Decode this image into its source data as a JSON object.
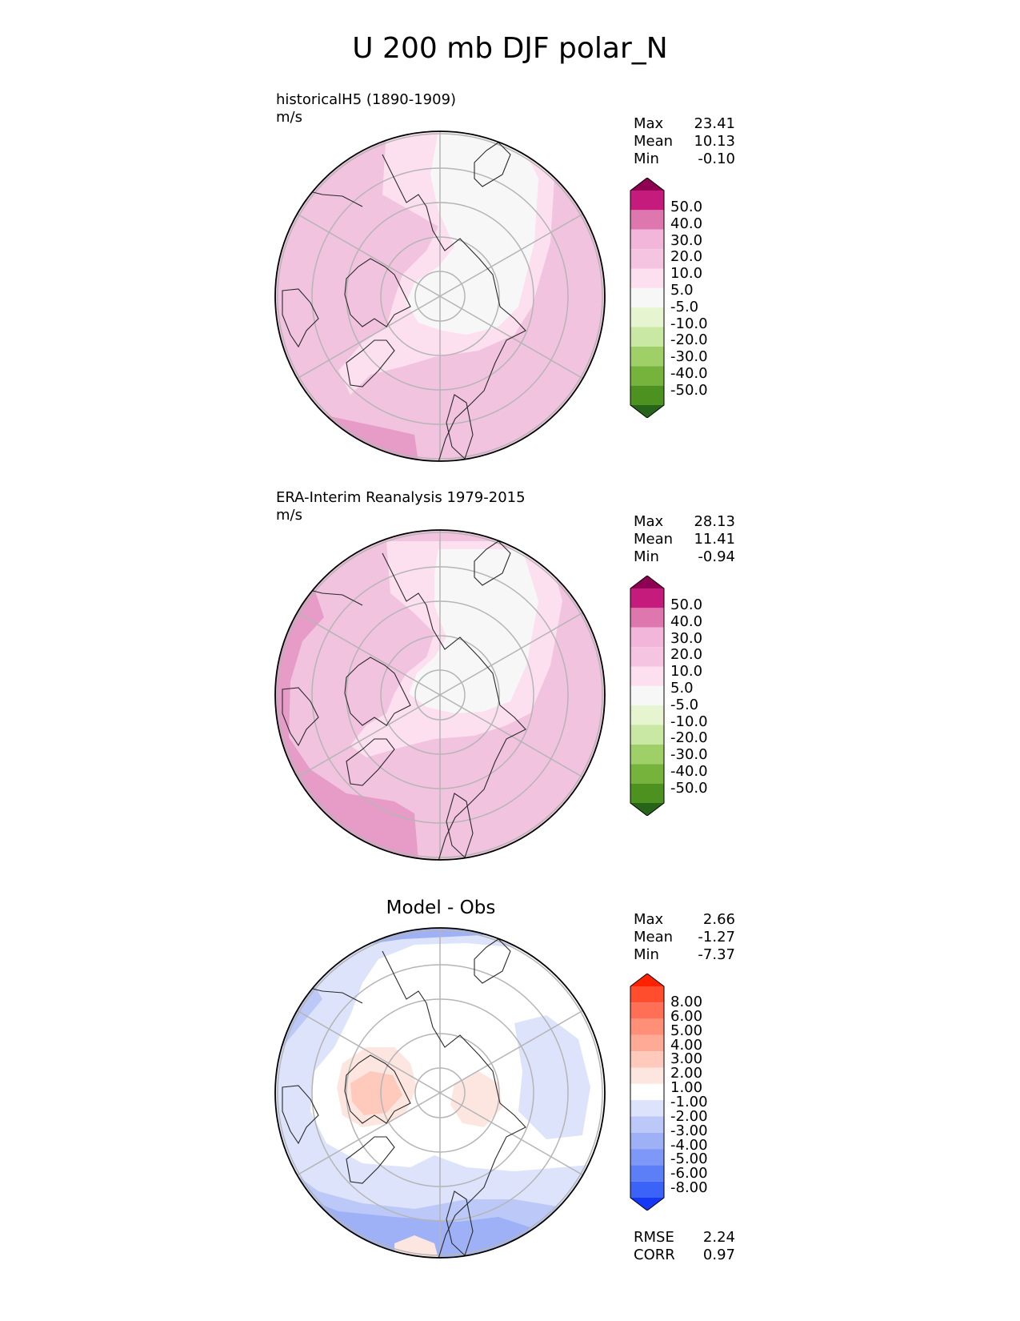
{
  "title": "U 200 mb DJF polar_N",
  "panels": [
    {
      "label": "historicalH5 (1890-1909)",
      "units": "m/s",
      "stats": [
        {
          "name": "Max",
          "value": "23.41"
        },
        {
          "name": "Mean",
          "value": "10.13"
        },
        {
          "name": "Min",
          "value": "-0.10"
        }
      ],
      "levels": [
        "50.0",
        "40.0",
        "30.0",
        "20.0",
        "10.0",
        "5.0",
        "-5.0",
        "-10.0",
        "-20.0",
        "-30.0",
        "-40.0",
        "-50.0"
      ]
    },
    {
      "label": "ERA-Interim Reanalysis 1979-2015",
      "units": "m/s",
      "stats": [
        {
          "name": "Max",
          "value": "28.13"
        },
        {
          "name": "Mean",
          "value": "11.41"
        },
        {
          "name": "Min",
          "value": "-0.94"
        }
      ],
      "levels": [
        "50.0",
        "40.0",
        "30.0",
        "20.0",
        "10.0",
        "5.0",
        "-5.0",
        "-10.0",
        "-20.0",
        "-30.0",
        "-40.0",
        "-50.0"
      ]
    },
    {
      "title": "Model - Obs",
      "stats": [
        {
          "name": "Max",
          "value": "2.66"
        },
        {
          "name": "Mean",
          "value": "-1.27"
        },
        {
          "name": "Min",
          "value": "-7.37"
        }
      ],
      "levels": [
        "8.00",
        "6.00",
        "5.00",
        "4.00",
        "3.00",
        "2.00",
        "1.00",
        "-1.00",
        "-2.00",
        "-3.00",
        "-4.00",
        "-5.00",
        "-6.00",
        "-8.00"
      ],
      "footer": [
        {
          "name": "RMSE",
          "value": "2.24"
        },
        {
          "name": "CORR",
          "value": "0.97"
        }
      ]
    }
  ],
  "chart_data": {
    "type": "heatmap",
    "projection": "north polar stereographic",
    "grid": true,
    "colors": {
      "field_colorbar": [
        "#8e0152",
        "#c51b7d",
        "#de77ae",
        "#f1b6da",
        "#f5c4e1",
        "#fde0ef",
        "#f7f7f7",
        "#e6f5d0",
        "#c9e8a4",
        "#9fd068",
        "#76b33d",
        "#4d9221",
        "#276419"
      ],
      "diff_colorbar": [
        "#ff2200",
        "#ff4d2d",
        "#ff6f55",
        "#ff8f77",
        "#ffaa96",
        "#ffc9bc",
        "#fde6e0",
        "#ffffff",
        "#dde3fb",
        "#bcc9f8",
        "#9eb1f7",
        "#7d98f7",
        "#5c7ff7",
        "#3b63f7",
        "#1438f5"
      ]
    }
  }
}
